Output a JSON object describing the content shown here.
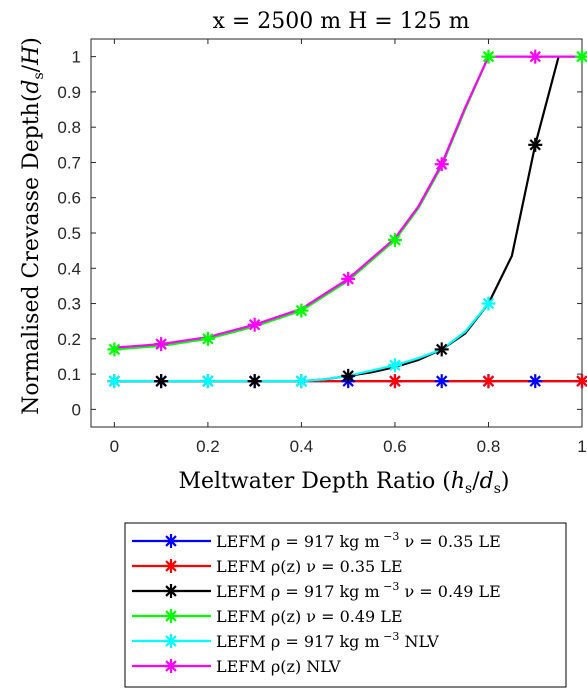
{
  "chart_data": {
    "type": "line",
    "title": "x = 2500 m H = 125 m",
    "xlabel": "Meltwater Depth Ratio (h_s/d_s)",
    "ylabel": "Normalised Crevasse Depth(d_s/H)",
    "xlim": [
      -0.05,
      1.0
    ],
    "ylim": [
      -0.05,
      1.05
    ],
    "xticks": [
      "0",
      "0.2",
      "0.4",
      "0.6",
      "0.8",
      "1"
    ],
    "yticks": [
      "0",
      "0.1",
      "0.2",
      "0.3",
      "0.4",
      "0.5",
      "0.6",
      "0.7",
      "0.8",
      "0.9",
      "1"
    ],
    "grid": false,
    "legend_position": "below",
    "series": [
      {
        "name": "LEFM ρ = 917 kg m⁻³ ν = 0.35 LE",
        "color": "#0000ff",
        "x": [
          0,
          0.1,
          0.2,
          0.3,
          0.4,
          0.5,
          0.6,
          0.7,
          0.8,
          0.9,
          1.0
        ],
        "y": [
          0.08,
          0.08,
          0.08,
          0.08,
          0.08,
          0.08,
          0.08,
          0.08,
          0.08,
          0.08,
          0.08
        ],
        "markers": [
          0,
          0.1,
          0.2,
          0.3,
          0.4,
          0.5,
          0.6,
          0.7,
          0.8,
          0.9,
          1.0
        ]
      },
      {
        "name": "LEFM ρ(z) ν = 0.35 LE",
        "color": "#ff0000",
        "x": [
          0,
          0.1,
          0.2,
          0.3,
          0.4,
          0.5,
          0.6,
          0.7,
          0.8,
          0.9,
          1.0
        ],
        "y": [
          0.08,
          0.08,
          0.08,
          0.08,
          0.08,
          0.08,
          0.08,
          0.08,
          0.08,
          0.08,
          0.08
        ],
        "markers": [
          0.6,
          0.8,
          1.0
        ]
      },
      {
        "name": "LEFM ρ = 917 kg m⁻³ ν = 0.49 LE",
        "color": "#000000",
        "x": [
          0,
          0.1,
          0.2,
          0.3,
          0.4,
          0.45,
          0.5,
          0.55,
          0.6,
          0.65,
          0.7,
          0.75,
          0.8,
          0.85,
          0.9,
          0.93,
          0.95
        ],
        "y": [
          0.08,
          0.08,
          0.08,
          0.08,
          0.08,
          0.085,
          0.095,
          0.105,
          0.12,
          0.14,
          0.17,
          0.215,
          0.3,
          0.435,
          0.75,
          0.9,
          1.0
        ],
        "markers": [
          0.1,
          0.3,
          0.5,
          0.7,
          0.9
        ]
      },
      {
        "name": "LEFM ρ(z) ν = 0.49 LE",
        "color": "#00ff00",
        "x": [
          0,
          0.1,
          0.2,
          0.3,
          0.4,
          0.5,
          0.6,
          0.65,
          0.7,
          0.75,
          0.8,
          0.9,
          1.0
        ],
        "y": [
          0.17,
          0.18,
          0.2,
          0.235,
          0.28,
          0.365,
          0.48,
          0.57,
          0.69,
          0.85,
          1.0,
          1.0,
          1.0
        ],
        "markers": [
          0,
          0.2,
          0.4,
          0.6,
          0.8,
          1.0
        ]
      },
      {
        "name": "LEFM ρ = 917 kg m⁻³ NLV",
        "color": "#00ffff",
        "x": [
          0,
          0.1,
          0.2,
          0.3,
          0.4,
          0.45,
          0.5,
          0.55,
          0.6,
          0.65,
          0.7,
          0.75,
          0.8
        ],
        "y": [
          0.08,
          0.08,
          0.08,
          0.08,
          0.08,
          0.085,
          0.095,
          0.11,
          0.125,
          0.145,
          0.17,
          0.22,
          0.3
        ],
        "markers": [
          0,
          0.2,
          0.4,
          0.6,
          0.8
        ]
      },
      {
        "name": "LEFM ρ(z) NLV",
        "color": "#ff00ff",
        "x": [
          0,
          0.1,
          0.2,
          0.3,
          0.4,
          0.5,
          0.6,
          0.65,
          0.7,
          0.75,
          0.8,
          0.9,
          1.0
        ],
        "y": [
          0.175,
          0.185,
          0.205,
          0.24,
          0.285,
          0.37,
          0.485,
          0.575,
          0.695,
          0.855,
          1.0,
          1.0,
          1.0
        ],
        "markers": [
          0.1,
          0.3,
          0.5,
          0.7,
          0.9
        ]
      }
    ]
  },
  "legend_labels": [
    {
      "pre": "LEFM ρ = 917 kg m",
      "sup": "−3",
      "post": " ν = 0.35 LE"
    },
    {
      "pre": "LEFM ρ(z) ν = 0.35 LE",
      "sup": "",
      "post": ""
    },
    {
      "pre": "LEFM ρ = 917 kg m",
      "sup": "−3",
      "post": " ν = 0.49 LE"
    },
    {
      "pre": "LEFM ρ(z) ν = 0.49 LE",
      "sup": "",
      "post": ""
    },
    {
      "pre": "LEFM ρ = 917 kg m",
      "sup": "−3",
      "post": " NLV"
    },
    {
      "pre": "LEFM ρ(z) NLV",
      "sup": "",
      "post": ""
    }
  ]
}
